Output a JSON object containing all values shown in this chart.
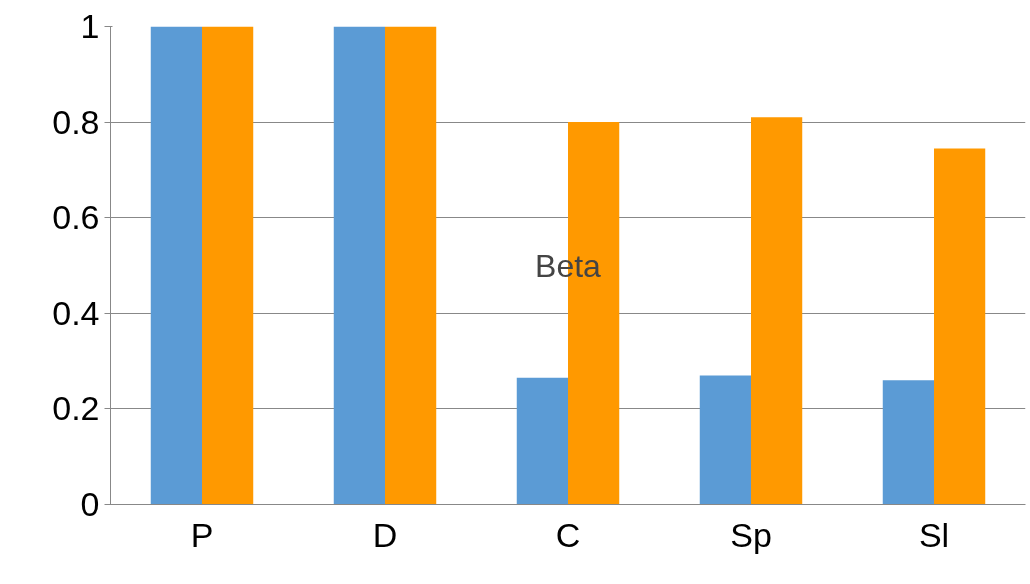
{
  "chart_data": {
    "type": "bar",
    "categories": [
      "P",
      "D",
      "C",
      "Sp",
      "Sl"
    ],
    "series": [
      {
        "color": "#5b9bd5",
        "values": [
          1,
          1,
          0.265,
          0.27,
          0.26
        ]
      },
      {
        "color": "#ff9900",
        "values": [
          1,
          1,
          0.8,
          0.81,
          0.745
        ]
      }
    ],
    "ylim": [
      0,
      1
    ],
    "yticks": [
      0,
      0.2,
      0.4,
      0.6,
      0.8,
      1
    ],
    "grid": "y",
    "annotations": [
      "Beta"
    ]
  }
}
